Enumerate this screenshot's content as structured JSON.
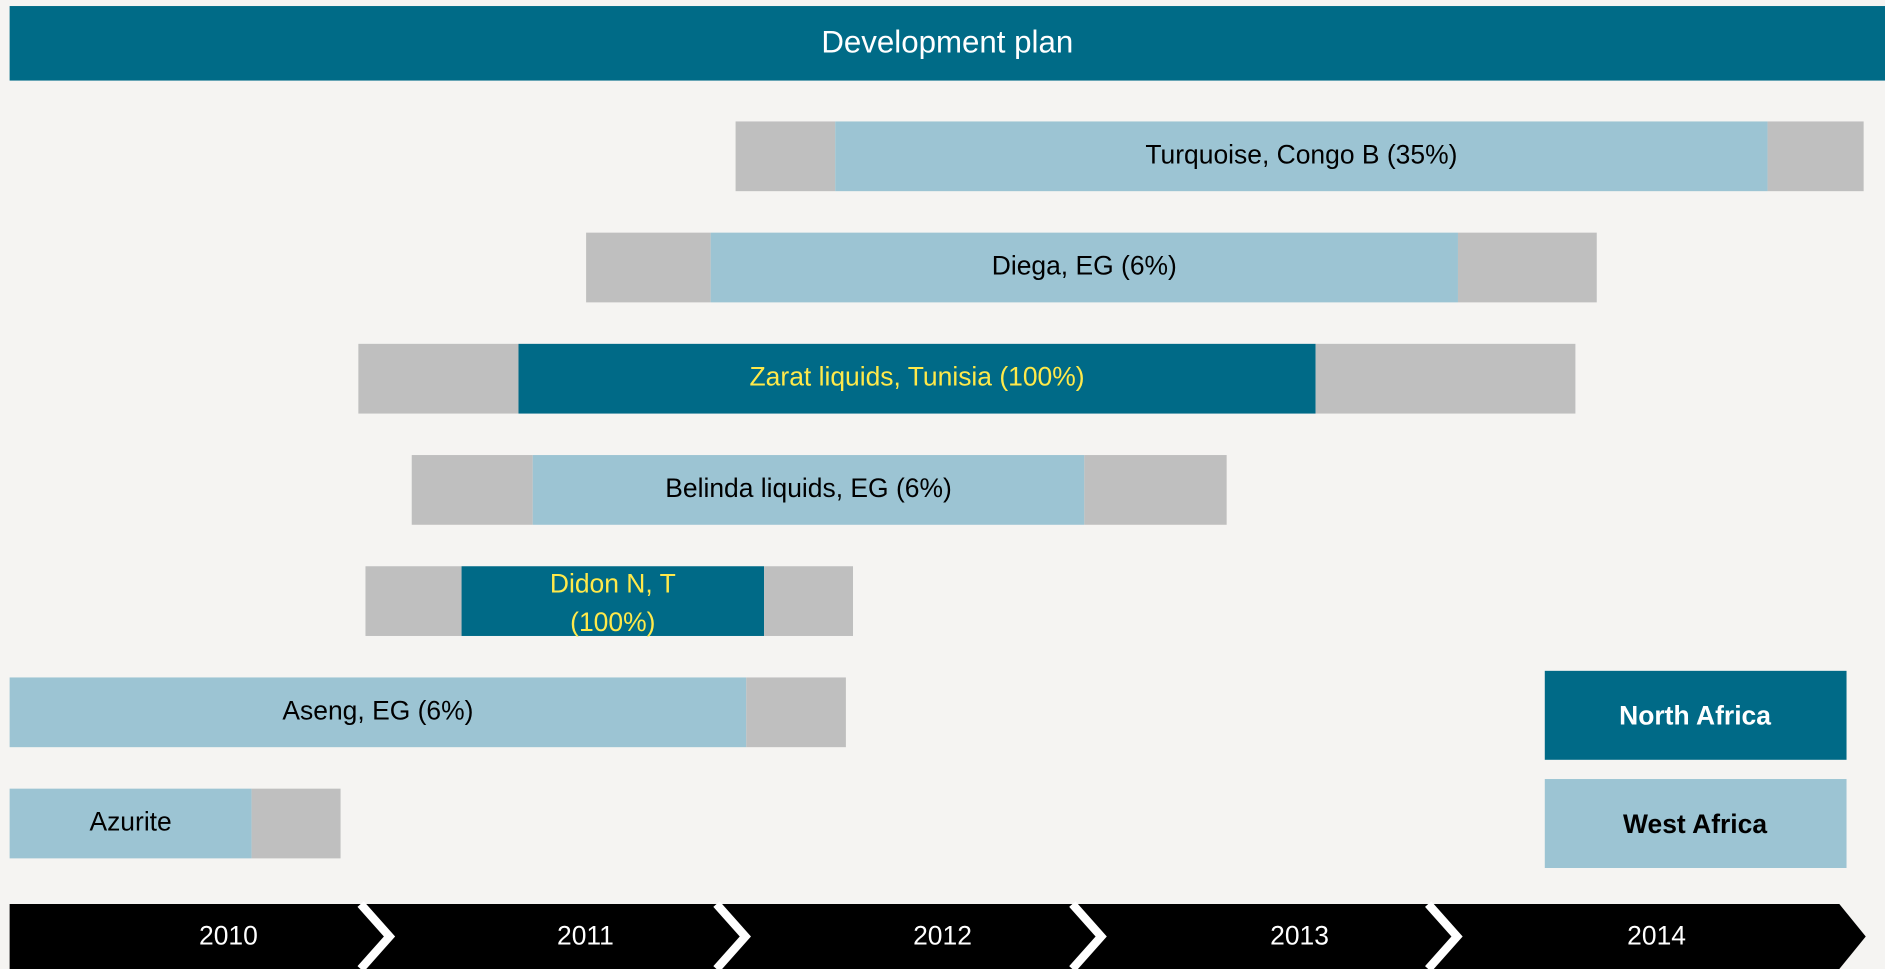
{
  "chart_data": {
    "type": "gantt",
    "title": "Development plan",
    "categories": [
      "2010",
      "2011",
      "2012",
      "2013",
      "2014"
    ],
    "xlim": [
      2010,
      2015.27
    ],
    "pad_color": "#bfbfbf",
    "series": [
      {
        "name": "North Africa",
        "color": "#006a87",
        "text_color": "#ffe94a",
        "legend_text_color": "#ffffff"
      },
      {
        "name": "West Africa",
        "color": "#9cc4d3",
        "text_color": "#000000",
        "legend_text_color": "#000000"
      }
    ],
    "tasks": [
      {
        "name": "Turquoise, Congo B (35%)",
        "region": "West Africa",
        "start": 2012.04,
        "main_start": 2012.32,
        "main_end": 2014.94,
        "end": 2015.21
      },
      {
        "name": "Diega, EG (6%)",
        "region": "West Africa",
        "start": 2011.62,
        "main_start": 2011.97,
        "main_end": 2014.07,
        "end": 2014.46
      },
      {
        "name": "Zarat liquids, Tunisia (100%)",
        "region": "North Africa",
        "start": 2010.98,
        "main_start": 2011.43,
        "main_end": 2013.67,
        "end": 2014.4
      },
      {
        "name": "Belinda liquids, EG (6%)",
        "region": "West Africa",
        "start": 2011.13,
        "main_start": 2011.47,
        "main_end": 2013.02,
        "end": 2013.42
      },
      {
        "name": "Didon N, T (100%)",
        "region": "North Africa",
        "start": 2011.0,
        "main_start": 2011.27,
        "main_end": 2012.12,
        "end": 2012.37
      },
      {
        "name": "Aseng, EG (6%)",
        "region": "West Africa",
        "start": 2010.0,
        "main_start": 2010.0,
        "main_end": 2012.07,
        "end": 2012.35
      },
      {
        "name": "Azurite",
        "region": "West Africa",
        "start": 2010.0,
        "main_start": 2010.0,
        "main_end": 2010.68,
        "end": 2010.93
      }
    ]
  }
}
